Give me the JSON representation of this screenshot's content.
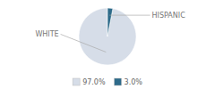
{
  "chart_data": {
    "type": "pie",
    "categories": [
      "WHITE",
      "HISPANIC"
    ],
    "values": [
      97.0,
      3.0
    ],
    "value_labels": [
      "97.0%",
      "3.0%"
    ],
    "colors": [
      "#d6dde8",
      "#2e6b8a"
    ],
    "legend": "bottom"
  }
}
